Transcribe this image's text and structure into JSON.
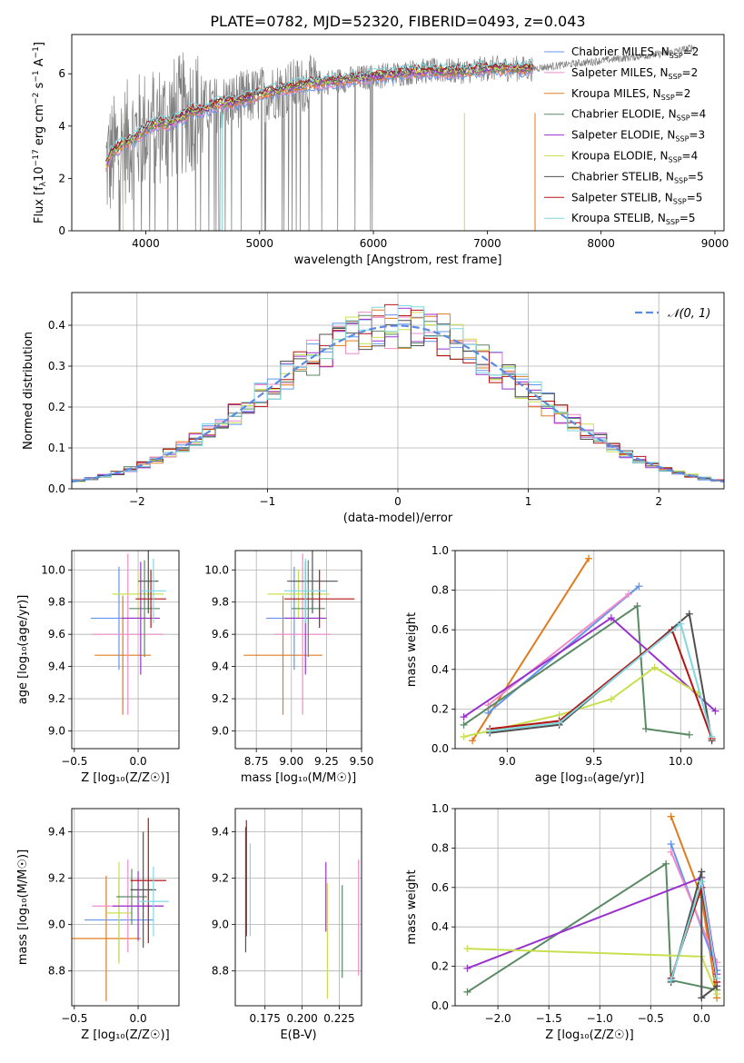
{
  "figure": {
    "title": "PLATE=0782, MJD=52320, FIBERID=0493, z=0.043",
    "colors": {
      "chabrier_miles": "#6495ED",
      "salpeter_miles": "#F08CC8",
      "kroupa_miles": "#E07B1E",
      "chabrier_elodie": "#5A8A64",
      "salpeter_elodie": "#9932CC",
      "kroupa_elodie": "#C8E050",
      "chabrier_stelib": "#505050",
      "salpeter_stelib": "#B41414",
      "kroupa_stelib": "#7FD8E0",
      "data": "#808080"
    }
  },
  "chart_data": [
    {
      "id": "spectrum",
      "type": "line",
      "title": "PLATE=0782, MJD=52320, FIBERID=0493, z=0.043",
      "xlabel": "wavelength [Angstrom, rest frame]",
      "ylabel_parts": [
        "Flux [f",
        "λ",
        "10",
        "−17",
        " erg cm",
        "−2",
        " s",
        "−1",
        " A",
        "−1",
        "]"
      ],
      "xlim": [
        3350,
        9080
      ],
      "ylim": [
        0,
        7.5
      ],
      "xticks": [
        4000,
        5000,
        6000,
        7000,
        8000,
        9000
      ],
      "yticks": [
        0,
        2,
        4,
        6
      ],
      "legend": [
        {
          "base": "Chabrier MILES, N",
          "sub": "SSP",
          "tail": "=2",
          "color": "#6495ED"
        },
        {
          "base": "Salpeter MILES, N",
          "sub": "SSP",
          "tail": "=2",
          "color": "#F08CC8"
        },
        {
          "base": "Kroupa MILES, N",
          "sub": "SSP",
          "tail": "=2",
          "color": "#E07B1E"
        },
        {
          "base": "Chabrier ELODIE, N",
          "sub": "SSP",
          "tail": "=4",
          "color": "#5A8A64"
        },
        {
          "base": "Salpeter ELODIE, N",
          "sub": "SSP",
          "tail": "=3",
          "color": "#9932CC"
        },
        {
          "base": "Kroupa ELODIE, N",
          "sub": "SSP",
          "tail": "=4",
          "color": "#C8E050"
        },
        {
          "base": "Chabrier STELIB, N",
          "sub": "SSP",
          "tail": "=5",
          "color": "#505050"
        },
        {
          "base": "Salpeter STELIB, N",
          "sub": "SSP",
          "tail": "=5",
          "color": "#B41414"
        },
        {
          "base": "Kroupa STELIB, N",
          "sub": "SSP",
          "tail": "=5",
          "color": "#7FD8E0"
        }
      ],
      "data_series": {
        "name": "data",
        "x": [
          3650,
          3800,
          4000,
          4200,
          4400,
          4600,
          4800,
          5000,
          5200,
          5400,
          5600,
          5800,
          6000,
          6200,
          6400,
          6600,
          6800,
          7000,
          7200,
          7400,
          7600,
          7800,
          8000,
          8200,
          8400,
          8600,
          8800
        ],
        "y": [
          2.5,
          3.3,
          3.9,
          4.2,
          4.6,
          4.8,
          5.0,
          5.2,
          5.4,
          5.6,
          5.7,
          5.8,
          5.9,
          6.0,
          6.1,
          6.1,
          6.1,
          6.2,
          6.2,
          6.2,
          6.3,
          6.4,
          6.5,
          6.6,
          6.7,
          6.8,
          7.0
        ]
      },
      "model_x": [
        3650,
        3700,
        3800,
        3900,
        4000,
        4100,
        4200,
        4300,
        4400,
        4500,
        4600,
        4700,
        4800,
        4900,
        5000,
        5200,
        5400,
        5600,
        5800,
        6000,
        6200,
        6400,
        6600,
        6800,
        7000,
        7200,
        7400
      ],
      "model_y": [
        2.5,
        3.0,
        3.3,
        3.5,
        3.9,
        4.1,
        4.1,
        4.3,
        4.6,
        4.6,
        4.8,
        4.9,
        4.9,
        5.1,
        5.2,
        5.4,
        5.6,
        5.7,
        5.8,
        5.9,
        6.0,
        6.1,
        6.1,
        6.1,
        6.2,
        6.2,
        6.2
      ]
    },
    {
      "id": "residuals",
      "type": "bar",
      "xlabel": "(data-model)/error",
      "ylabel": "Normed distribution",
      "xlim": [
        -2.5,
        2.5
      ],
      "ylim": [
        0,
        0.48
      ],
      "xticks": [
        -2,
        -1,
        0,
        1,
        2
      ],
      "xtick_labels": [
        "−2",
        "−1",
        "0",
        "1",
        "2"
      ],
      "yticks": [
        0.0,
        0.1,
        0.2,
        0.3,
        0.4
      ],
      "bin_width": 0.1,
      "legend_label": "𝒩(0, 1)",
      "curve": {
        "name": "𝒩(0, 1)",
        "mean": 0,
        "sigma": 1,
        "color": "#5B8BE0"
      }
    },
    {
      "id": "age_vs_Z",
      "type": "scatter",
      "xlabel": "Z [log₁₀(Z/Z☉)]",
      "ylabel": "age  [log₁₀(age/yr)]",
      "xlim": [
        -0.52,
        0.32
      ],
      "ylim": [
        8.89,
        10.12
      ],
      "xticks": [
        -0.5,
        0.0
      ],
      "xtick_labels": [
        "−0.5",
        "0.0"
      ],
      "yticks": [
        9.0,
        9.2,
        9.4,
        9.6,
        9.8,
        10.0
      ],
      "points": [
        {
          "x": -0.12,
          "y": 9.47,
          "xerr": 0.22,
          "yerr": 0.37,
          "color": "#E07B1E"
        },
        {
          "x": -0.15,
          "y": 9.7,
          "xerr": 0.22,
          "yerr": 0.32,
          "color": "#6495ED"
        },
        {
          "x": -0.08,
          "y": 9.6,
          "xerr": 0.28,
          "yerr": 0.5,
          "color": "#F08CC8"
        },
        {
          "x": 0.0,
          "y": 9.85,
          "xerr": 0.2,
          "yerr": 0.15,
          "color": "#C8E050"
        },
        {
          "x": 0.05,
          "y": 9.76,
          "xerr": 0.12,
          "yerr": 0.3,
          "color": "#5A8A64"
        },
        {
          "x": 0.02,
          "y": 9.7,
          "xerr": 0.15,
          "yerr": 0.35,
          "color": "#9932CC"
        },
        {
          "x": 0.1,
          "y": 9.82,
          "xerr": 0.12,
          "yerr": 0.18,
          "color": "#B41414"
        },
        {
          "x": 0.08,
          "y": 9.93,
          "xerr": 0.08,
          "yerr": 0.2,
          "color": "#505050"
        },
        {
          "x": 0.12,
          "y": 9.87,
          "xerr": 0.1,
          "yerr": 0.2,
          "color": "#7FD8E0"
        }
      ]
    },
    {
      "id": "age_vs_mass",
      "type": "scatter",
      "xlabel": "mass [log₁₀(M/M☉)]",
      "ylabel": "",
      "xlim": [
        8.6,
        9.5
      ],
      "ylim": [
        8.89,
        10.12
      ],
      "xticks": [
        8.75,
        9.0,
        9.25,
        9.5
      ],
      "xtick_labels": [
        "8.75",
        "9.00",
        "9.25",
        "9.50"
      ],
      "yticks": [
        9.0,
        9.2,
        9.4,
        9.6,
        9.8,
        10.0
      ],
      "points": [
        {
          "x": 8.94,
          "y": 9.47,
          "xerr": 0.28,
          "yerr": 0.37,
          "color": "#E07B1E"
        },
        {
          "x": 9.02,
          "y": 9.7,
          "xerr": 0.2,
          "yerr": 0.32,
          "color": "#6495ED"
        },
        {
          "x": 9.08,
          "y": 9.6,
          "xerr": 0.2,
          "yerr": 0.5,
          "color": "#F08CC8"
        },
        {
          "x": 9.05,
          "y": 9.85,
          "xerr": 0.22,
          "yerr": 0.15,
          "color": "#C8E050"
        },
        {
          "x": 9.12,
          "y": 9.76,
          "xerr": 0.12,
          "yerr": 0.3,
          "color": "#5A8A64"
        },
        {
          "x": 9.1,
          "y": 9.7,
          "xerr": 0.15,
          "yerr": 0.35,
          "color": "#9932CC"
        },
        {
          "x": 9.2,
          "y": 9.82,
          "xerr": 0.25,
          "yerr": 0.18,
          "color": "#B41414"
        },
        {
          "x": 9.15,
          "y": 9.93,
          "xerr": 0.18,
          "yerr": 0.2,
          "color": "#505050"
        },
        {
          "x": 9.1,
          "y": 9.87,
          "xerr": 0.15,
          "yerr": 0.2,
          "color": "#7FD8E0"
        }
      ]
    },
    {
      "id": "weight_vs_age",
      "type": "line",
      "xlabel": "age  [log₁₀(age/yr)]",
      "ylabel": "mass weight",
      "xlim": [
        8.7,
        10.25
      ],
      "ylim": [
        0,
        1.0
      ],
      "xticks": [
        9.0,
        9.5,
        10.0
      ],
      "xtick_labels": [
        "9.0",
        "9.5",
        "10.0"
      ],
      "yticks": [
        0.0,
        0.2,
        0.4,
        0.6,
        0.8,
        1.0
      ],
      "series": [
        {
          "color": "#E07B1E",
          "x": [
            8.8,
            9.47
          ],
          "y": [
            0.04,
            0.96
          ]
        },
        {
          "color": "#6495ED",
          "x": [
            8.89,
            9.76
          ],
          "y": [
            0.18,
            0.82
          ]
        },
        {
          "color": "#F08CC8",
          "x": [
            8.89,
            9.7
          ],
          "y": [
            0.22,
            0.78
          ]
        },
        {
          "color": "#5A8A64",
          "x": [
            8.75,
            9.75,
            9.8,
            10.05
          ],
          "y": [
            0.12,
            0.72,
            0.1,
            0.07
          ]
        },
        {
          "color": "#9932CC",
          "x": [
            8.75,
            9.6,
            10.2
          ],
          "y": [
            0.16,
            0.66,
            0.19
          ]
        },
        {
          "color": "#C8E050",
          "x": [
            8.75,
            9.3,
            9.6,
            9.85,
            10.1
          ],
          "y": [
            0.06,
            0.17,
            0.25,
            0.41,
            0.28
          ]
        },
        {
          "color": "#505050",
          "x": [
            8.9,
            9.3,
            10.05,
            10.18
          ],
          "y": [
            0.08,
            0.12,
            0.68,
            0.04
          ]
        },
        {
          "color": "#B41414",
          "x": [
            8.9,
            9.3,
            9.95,
            10.18
          ],
          "y": [
            0.1,
            0.14,
            0.6,
            0.05
          ]
        },
        {
          "color": "#7FD8E0",
          "x": [
            8.9,
            9.3,
            10.0,
            10.18
          ],
          "y": [
            0.09,
            0.13,
            0.63,
            0.06
          ]
        }
      ]
    },
    {
      "id": "mass_vs_Z",
      "type": "scatter",
      "xlabel": "Z [log₁₀(Z/Z☉)]",
      "ylabel": "mass [log₁₀(M/M☉)]",
      "xlim": [
        -0.52,
        0.32
      ],
      "ylim": [
        8.65,
        9.5
      ],
      "xticks": [
        -0.5,
        0.0
      ],
      "xtick_labels": [
        "−0.5",
        "0.0"
      ],
      "yticks": [
        8.8,
        9.0,
        9.2,
        9.4
      ],
      "points": [
        {
          "x": -0.25,
          "y": 8.94,
          "xerr": 0.27,
          "yerr": 0.27,
          "color": "#E07B1E"
        },
        {
          "x": -0.15,
          "y": 9.02,
          "xerr": 0.27,
          "yerr": 0.18,
          "color": "#6495ED"
        },
        {
          "x": -0.08,
          "y": 9.08,
          "xerr": 0.28,
          "yerr": 0.2,
          "color": "#F08CC8"
        },
        {
          "x": -0.15,
          "y": 9.05,
          "xerr": 0.1,
          "yerr": 0.22,
          "color": "#C8E050"
        },
        {
          "x": -0.05,
          "y": 9.12,
          "xerr": 0.12,
          "yerr": 0.12,
          "color": "#5A8A64"
        },
        {
          "x": 0.0,
          "y": 9.08,
          "xerr": 0.2,
          "yerr": 0.15,
          "color": "#9932CC"
        },
        {
          "x": 0.08,
          "y": 9.19,
          "xerr": 0.14,
          "yerr": 0.27,
          "color": "#B41414"
        },
        {
          "x": 0.04,
          "y": 9.15,
          "xerr": 0.1,
          "yerr": 0.25,
          "color": "#505050"
        },
        {
          "x": 0.12,
          "y": 9.1,
          "xerr": 0.12,
          "yerr": 0.15,
          "color": "#7FD8E0"
        }
      ]
    },
    {
      "id": "mass_vs_ebv",
      "type": "scatter",
      "xlabel": "E(B-V)",
      "ylabel": "",
      "xlim": [
        0.155,
        0.24
      ],
      "ylim": [
        8.65,
        9.5
      ],
      "xticks": [
        0.175,
        0.2,
        0.225
      ],
      "xtick_labels": [
        "0.175",
        "0.200",
        "0.225"
      ],
      "yticks": [
        8.8,
        9.0,
        9.2,
        9.4
      ],
      "points": [
        {
          "x": 0.162,
          "y": 9.15,
          "yerr": 0.27,
          "color": "#505050"
        },
        {
          "x": 0.1625,
          "y": 9.2,
          "yerr": 0.25,
          "color": "#B41414"
        },
        {
          "x": 0.165,
          "y": 9.15,
          "yerr": 0.2,
          "color": "#7FD8E0"
        },
        {
          "x": 0.216,
          "y": 9.12,
          "yerr": 0.15,
          "color": "#9932CC"
        },
        {
          "x": 0.217,
          "y": 8.93,
          "yerr": 0.25,
          "color": "#C8E050"
        },
        {
          "x": 0.227,
          "y": 8.97,
          "yerr": 0.2,
          "color": "#5A8A64"
        },
        {
          "x": 0.238,
          "y": 9.03,
          "yerr": 0.25,
          "color": "#F08CC8"
        }
      ]
    },
    {
      "id": "weight_vs_Z",
      "type": "line",
      "xlabel": "Z [log₁₀(Z/Z☉)]",
      "ylabel": "mass weight",
      "xlim": [
        -2.42,
        0.22
      ],
      "ylim": [
        0,
        1.0
      ],
      "xticks": [
        -2.0,
        -1.5,
        -1.0,
        -0.5,
        0.0
      ],
      "xtick_labels": [
        "−2.0",
        "−1.5",
        "−1.0",
        "−0.5",
        "0.0"
      ],
      "yticks": [
        0.0,
        0.2,
        0.4,
        0.6,
        0.8,
        1.0
      ],
      "series": [
        {
          "color": "#E07B1E",
          "x": [
            -0.3,
            0.0,
            0.15
          ],
          "y": [
            0.96,
            0.55,
            0.04
          ]
        },
        {
          "color": "#6495ED",
          "x": [
            -0.3,
            0.15
          ],
          "y": [
            0.82,
            0.18
          ]
        },
        {
          "color": "#F08CC8",
          "x": [
            -0.3,
            0.15
          ],
          "y": [
            0.78,
            0.22
          ]
        },
        {
          "color": "#5A8A64",
          "x": [
            -2.3,
            -0.35,
            -0.3,
            0.15
          ],
          "y": [
            0.07,
            0.72,
            0.13,
            0.08
          ]
        },
        {
          "color": "#9932CC",
          "x": [
            -2.3,
            0.0,
            0.15
          ],
          "y": [
            0.19,
            0.65,
            0.16
          ]
        },
        {
          "color": "#C8E050",
          "x": [
            -2.3,
            0.0,
            0.15
          ],
          "y": [
            0.29,
            0.25,
            0.06
          ]
        },
        {
          "color": "#505050",
          "x": [
            -0.3,
            0.0,
            0.0,
            0.15
          ],
          "y": [
            0.12,
            0.68,
            0.04,
            0.1
          ]
        },
        {
          "color": "#B41414",
          "x": [
            -0.3,
            0.0,
            0.15
          ],
          "y": [
            0.14,
            0.6,
            0.12
          ]
        },
        {
          "color": "#7FD8E0",
          "x": [
            -0.3,
            0.0,
            0.15
          ],
          "y": [
            0.13,
            0.63,
            0.14
          ]
        }
      ]
    }
  ]
}
